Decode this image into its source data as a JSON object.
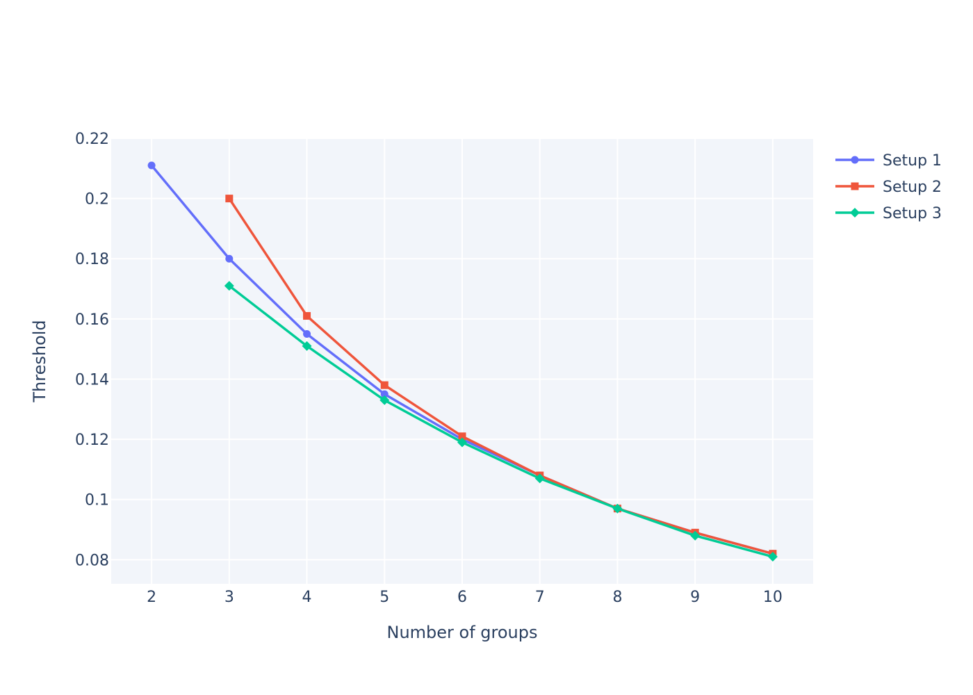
{
  "chart_data": {
    "type": "line",
    "title": "",
    "xlabel": "Number of groups",
    "ylabel": "Threshold",
    "xlim": [
      1.48,
      10.52
    ],
    "ylim": [
      0.072,
      0.22
    ],
    "x_ticks": [
      "2",
      "3",
      "4",
      "5",
      "6",
      "7",
      "8",
      "9",
      "10"
    ],
    "y_ticks": [
      "0.08",
      "0.1",
      "0.12",
      "0.14",
      "0.16",
      "0.18",
      "0.2",
      "0.22"
    ],
    "grid": true,
    "legend_position": "top-right",
    "plot_background": "#f2f5fa",
    "series": [
      {
        "name": "Setup 1",
        "color": "#636efa",
        "marker": "circle",
        "x": [
          2,
          3,
          4,
          5,
          6,
          7,
          8,
          9,
          10
        ],
        "y": [
          0.211,
          0.18,
          0.155,
          0.135,
          0.12,
          0.108,
          0.097,
          0.089,
          0.082
        ]
      },
      {
        "name": "Setup 2",
        "color": "#ef553b",
        "marker": "square",
        "x": [
          3,
          4,
          5,
          6,
          7,
          8,
          9,
          10
        ],
        "y": [
          0.2,
          0.161,
          0.138,
          0.121,
          0.108,
          0.097,
          0.089,
          0.082
        ]
      },
      {
        "name": "Setup 3",
        "color": "#00cc96",
        "marker": "diamond",
        "x": [
          3,
          4,
          5,
          6,
          7,
          8,
          9,
          10
        ],
        "y": [
          0.171,
          0.151,
          0.133,
          0.119,
          0.107,
          0.097,
          0.088,
          0.081
        ]
      }
    ]
  }
}
